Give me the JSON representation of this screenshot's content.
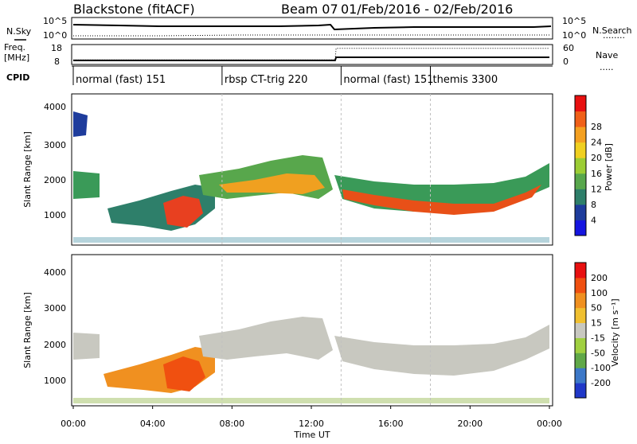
{
  "header": {
    "station": "Blackstone (fitACF)",
    "beam": "Beam 07",
    "date_range": "01/Feb/2016 - 02/Feb/2016"
  },
  "left_labels": {
    "nsky": "N.Sky",
    "freq": "Freq.",
    "freq_unit": "[MHz]",
    "cpid": "CPID"
  },
  "right_labels": {
    "nsearch": "N.Search",
    "nsearch_line": "........",
    "nave": "Nave",
    "nave_line": "....."
  },
  "chart_data": [
    {
      "type": "line",
      "name": "noise",
      "y_tick_labels": [
        "10^5",
        "10^0"
      ],
      "right_tick_labels": [
        "10^5",
        "10^0"
      ],
      "series": [
        {
          "name": "N.Sky",
          "style": "solid"
        },
        {
          "name": "N.Search",
          "style": "dotted"
        }
      ]
    },
    {
      "type": "line",
      "name": "frequency",
      "ylabel": "Freq. [MHz]",
      "left_ticks": [
        18,
        8
      ],
      "right_ticks": [
        60,
        0
      ],
      "x": [
        0,
        13.2,
        13.25,
        24
      ],
      "freq_mhz": [
        9.8,
        9.8,
        11.5,
        11.5
      ],
      "nave": [
        12,
        12,
        50,
        50
      ]
    },
    {
      "type": "table",
      "name": "cpid",
      "segments": [
        {
          "start": 0,
          "label": "normal (fast) 151"
        },
        {
          "start": 7.5,
          "label": "rbsp CT-trig 220"
        },
        {
          "start": 13.5,
          "label": "normal (fast) 151"
        },
        {
          "start": 18.0,
          "label": "themis 3300"
        }
      ]
    },
    {
      "type": "heatmap",
      "name": "power",
      "ylabel": "Slant Range [km]",
      "y_ticks": [
        1000,
        2000,
        3000,
        4000
      ],
      "xlim": [
        0,
        24
      ],
      "colorbar": {
        "label": "Power [dB]",
        "ticks": [
          4,
          8,
          12,
          16,
          20,
          24,
          28
        ],
        "colors": [
          "#1515e0",
          "#1e3c9c",
          "#2e7f6a",
          "#58a74c",
          "#9ccd34",
          "#f0d020",
          "#f4a020",
          "#f06018",
          "#e81010"
        ]
      }
    },
    {
      "type": "heatmap",
      "name": "velocity",
      "ylabel": "Slant Range [km]",
      "y_ticks": [
        1000,
        2000,
        3000,
        4000
      ],
      "xlim": [
        0,
        24
      ],
      "colorbar": {
        "label": "Velocity [m s⁻¹]",
        "ticks": [
          200,
          100,
          50,
          15,
          -15,
          -50,
          -100,
          -200
        ],
        "colors": [
          "#2038c8",
          "#3c78c8",
          "#60a848",
          "#a0d040",
          "#c8c8c0",
          "#f0c030",
          "#f09020",
          "#f05010",
          "#e81010"
        ]
      }
    }
  ],
  "x_axis": {
    "tick_labels": [
      "00:00",
      "04:00",
      "08:00",
      "12:00",
      "16:00",
      "20:00",
      "00:00"
    ],
    "label": "Time UT"
  }
}
